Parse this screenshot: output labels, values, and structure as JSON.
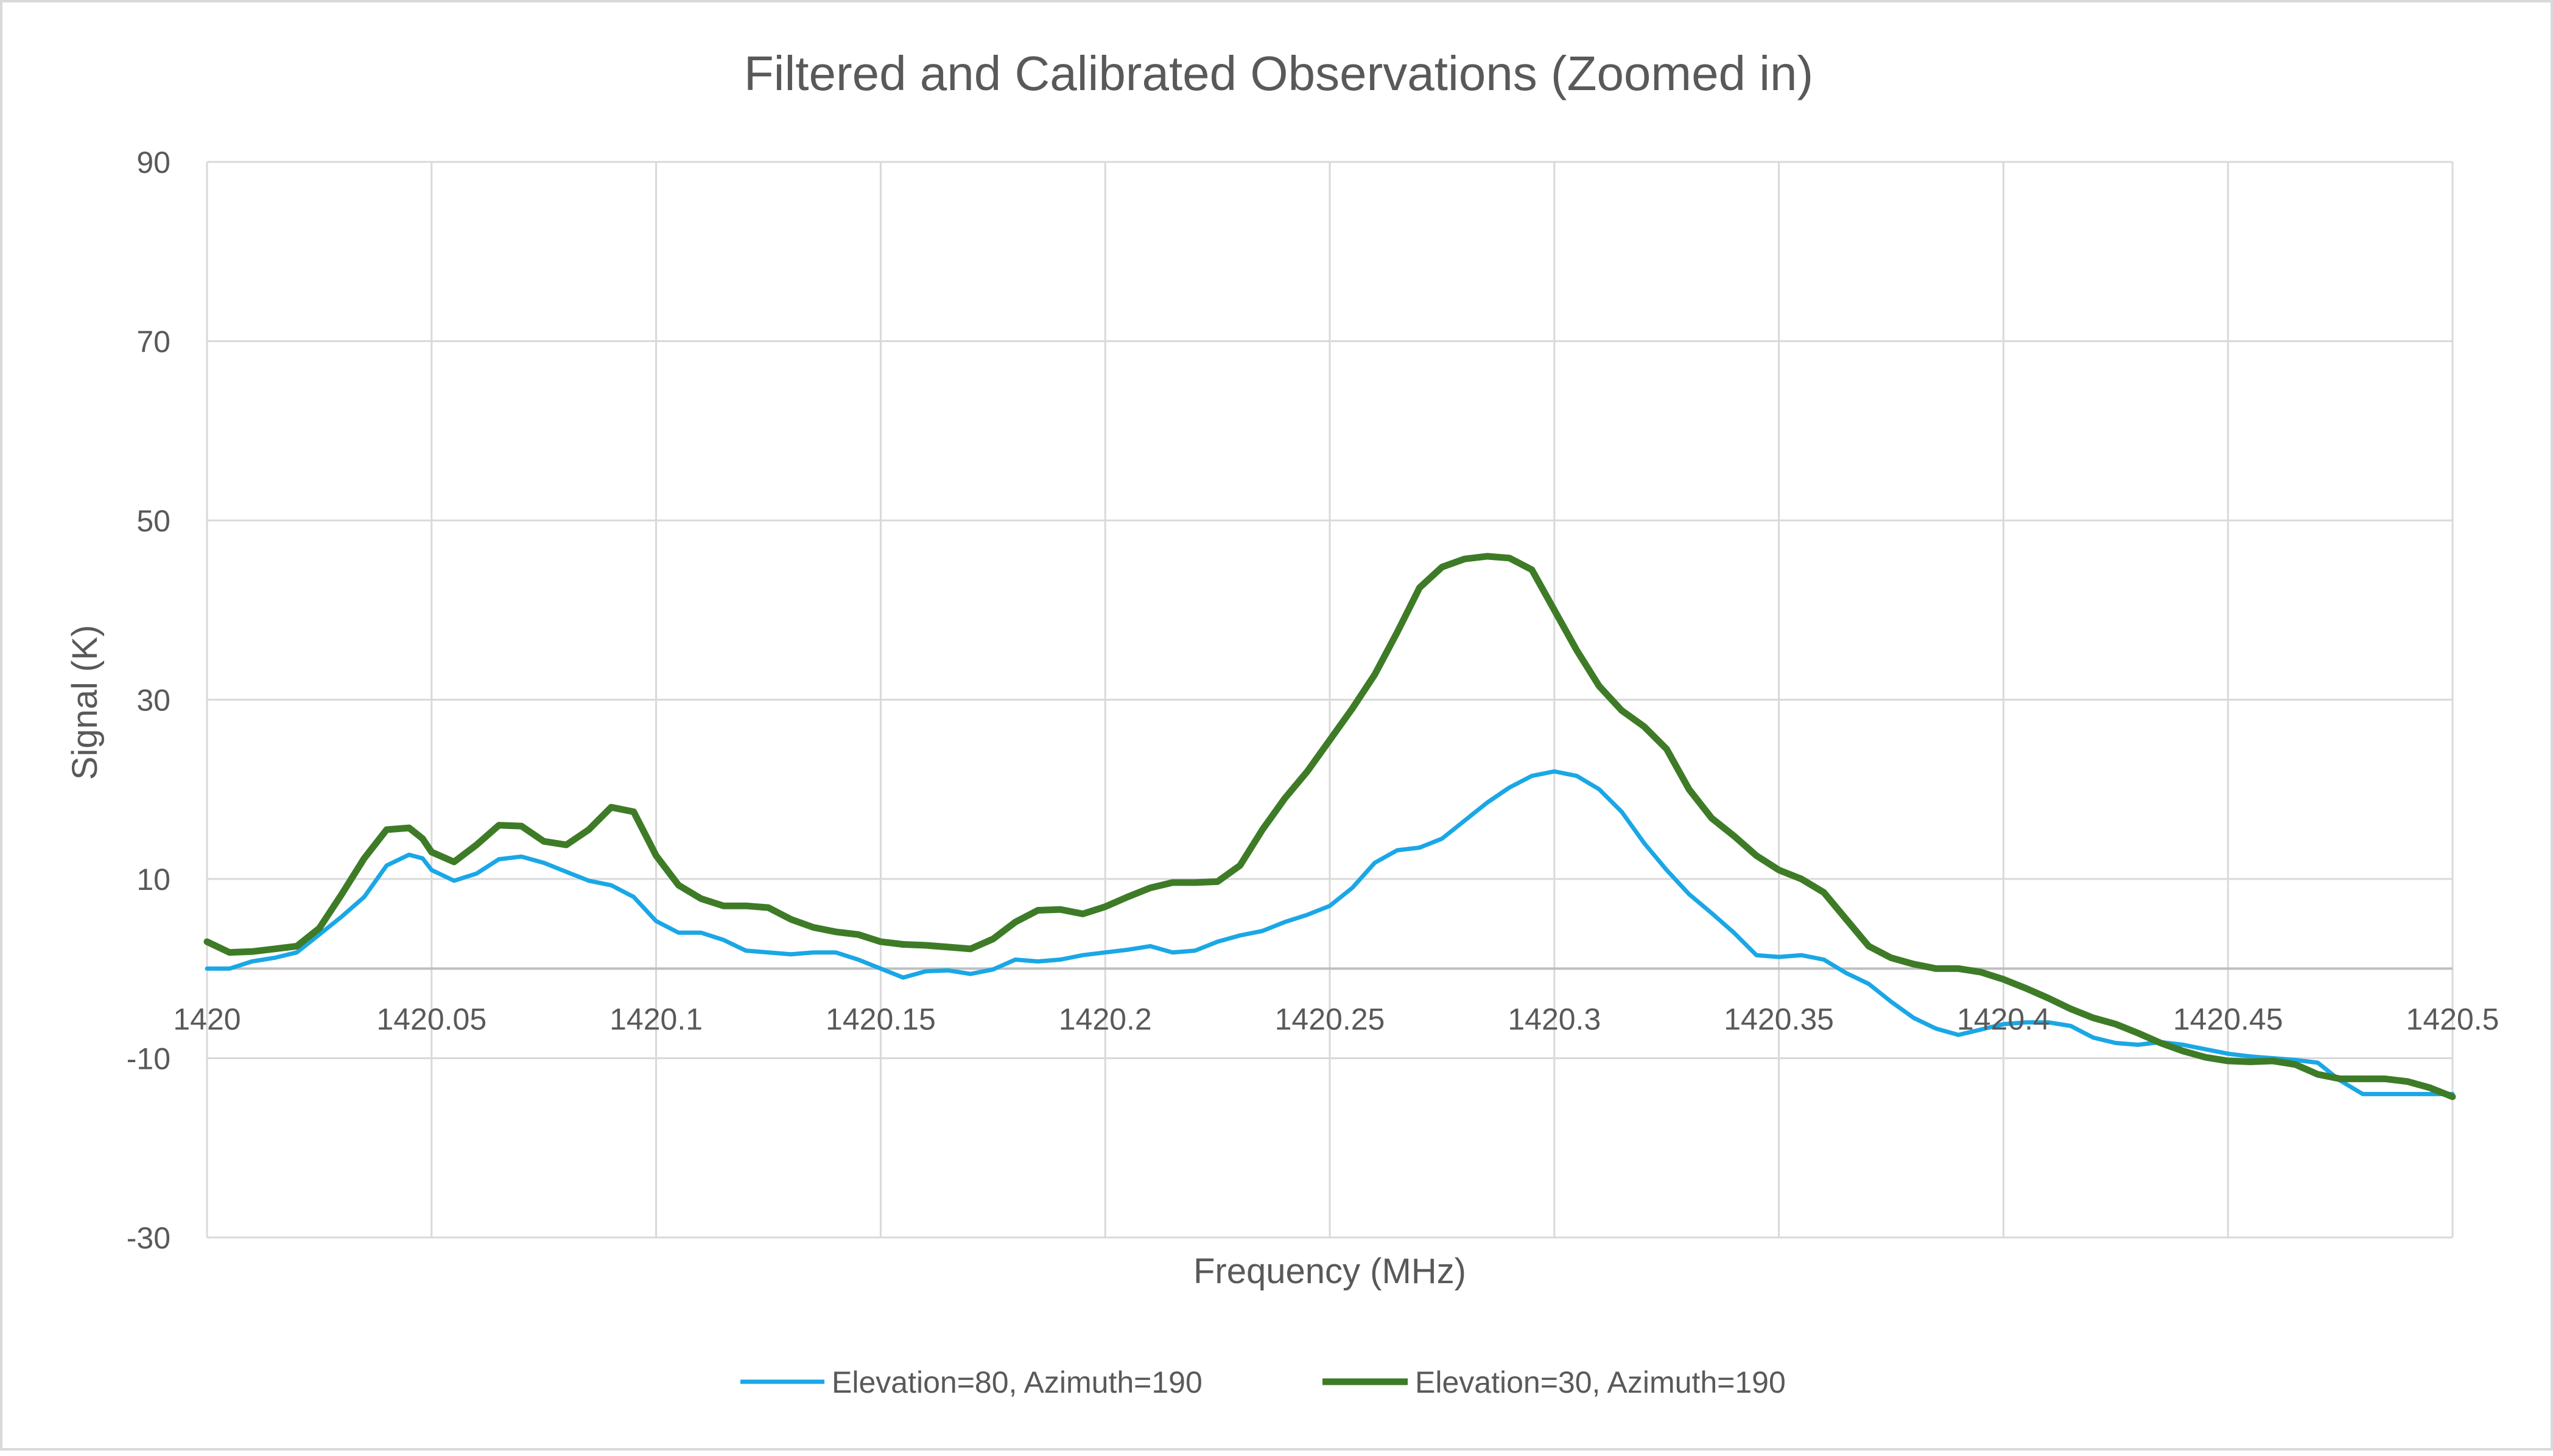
{
  "chart_data": {
    "type": "line",
    "title": "Filtered and Calibrated Observations (Zoomed in)",
    "xlabel": "Frequency (MHz)",
    "ylabel": "Signal (K)",
    "xlim": [
      1420,
      1420.5
    ],
    "ylim": [
      -30,
      90
    ],
    "x_ticks": [
      1420,
      1420.05,
      1420.1,
      1420.15,
      1420.2,
      1420.25,
      1420.3,
      1420.35,
      1420.4,
      1420.45,
      1420.5
    ],
    "x_tick_labels": [
      "1420",
      "1420.05",
      "1420.1",
      "1420.15",
      "1420.2",
      "1420.25",
      "1420.3",
      "1420.35",
      "1420.4",
      "1420.45",
      "1420.5"
    ],
    "y_ticks": [
      -30,
      -10,
      10,
      30,
      50,
      70,
      90
    ],
    "y_tick_labels": [
      "-30",
      "-10",
      "10",
      "30",
      "50",
      "70",
      "90"
    ],
    "grid": true,
    "legend_position": "bottom",
    "series": [
      {
        "name": "Elevation=80, Azimuth=190",
        "color": "#1aa7e6",
        "x": [
          1420,
          1420.005,
          1420.01,
          1420.015,
          1420.02,
          1420.025,
          1420.03,
          1420.035,
          1420.04,
          1420.045,
          1420.048,
          1420.05,
          1420.055,
          1420.06,
          1420.065,
          1420.07,
          1420.075,
          1420.08,
          1420.085,
          1420.09,
          1420.095,
          1420.1,
          1420.105,
          1420.11,
          1420.115,
          1420.12,
          1420.125,
          1420.13,
          1420.135,
          1420.14,
          1420.145,
          1420.15,
          1420.155,
          1420.16,
          1420.165,
          1420.17,
          1420.175,
          1420.18,
          1420.185,
          1420.19,
          1420.195,
          1420.2,
          1420.205,
          1420.21,
          1420.215,
          1420.22,
          1420.225,
          1420.23,
          1420.235,
          1420.24,
          1420.245,
          1420.25,
          1420.255,
          1420.26,
          1420.265,
          1420.27,
          1420.275,
          1420.28,
          1420.285,
          1420.29,
          1420.295,
          1420.3,
          1420.305,
          1420.31,
          1420.315,
          1420.32,
          1420.325,
          1420.33,
          1420.335,
          1420.34,
          1420.345,
          1420.35,
          1420.355,
          1420.36,
          1420.365,
          1420.37,
          1420.375,
          1420.38,
          1420.385,
          1420.39,
          1420.395,
          1420.4,
          1420.405,
          1420.41,
          1420.415,
          1420.42,
          1420.425,
          1420.43,
          1420.435,
          1420.44,
          1420.445,
          1420.45,
          1420.455,
          1420.46,
          1420.465,
          1420.47,
          1420.475,
          1420.48,
          1420.485,
          1420.49,
          1420.495,
          1420.5
        ],
        "y": [
          0,
          0,
          0.8,
          1.2,
          1.8,
          3.8,
          5.8,
          8,
          11.5,
          12.7,
          12.3,
          11,
          9.8,
          10.6,
          12.2,
          12.5,
          11.8,
          10.8,
          9.8,
          9.3,
          8,
          5.3,
          4,
          4,
          3.2,
          2,
          1.8,
          1.6,
          1.8,
          1.8,
          1,
          0,
          -1,
          -0.3,
          -0.2,
          -0.6,
          -0.1,
          1,
          0.8,
          1,
          1.5,
          1.8,
          2.1,
          2.5,
          1.8,
          2,
          3,
          3.7,
          4.2,
          5.2,
          6,
          7,
          9,
          11.8,
          13.2,
          13.5,
          14.5,
          16.5,
          18.5,
          20.2,
          21.5,
          22,
          21.5,
          20,
          17.5,
          14,
          11,
          8.3,
          6.2,
          4,
          1.5,
          1.3,
          1.5,
          1,
          -0.5,
          -1.7,
          -3.7,
          -5.5,
          -6.7,
          -7.4,
          -6.8,
          -6.2,
          -6,
          -6,
          -6.4,
          -7.7,
          -8.3,
          -8.5,
          -8.2,
          -8.5,
          -9,
          -9.5,
          -9.8,
          -10,
          -10.2,
          -10.5,
          -12.5,
          -14,
          -14,
          -14,
          -14,
          -14
        ],
        "y_note": "values beyond the rounding precision are read off the curve"
      },
      {
        "name": "Elevation=30, Azimuth=190",
        "color": "#3e7b27",
        "x": [
          1420,
          1420.005,
          1420.01,
          1420.015,
          1420.02,
          1420.025,
          1420.03,
          1420.035,
          1420.04,
          1420.045,
          1420.048,
          1420.05,
          1420.055,
          1420.06,
          1420.065,
          1420.07,
          1420.075,
          1420.08,
          1420.085,
          1420.09,
          1420.095,
          1420.1,
          1420.105,
          1420.11,
          1420.115,
          1420.12,
          1420.125,
          1420.13,
          1420.135,
          1420.14,
          1420.145,
          1420.15,
          1420.155,
          1420.16,
          1420.165,
          1420.17,
          1420.175,
          1420.18,
          1420.185,
          1420.19,
          1420.195,
          1420.2,
          1420.205,
          1420.21,
          1420.215,
          1420.22,
          1420.225,
          1420.23,
          1420.235,
          1420.24,
          1420.245,
          1420.25,
          1420.255,
          1420.26,
          1420.265,
          1420.27,
          1420.275,
          1420.28,
          1420.285,
          1420.29,
          1420.295,
          1420.3,
          1420.305,
          1420.31,
          1420.315,
          1420.32,
          1420.325,
          1420.33,
          1420.335,
          1420.34,
          1420.345,
          1420.35,
          1420.355,
          1420.36,
          1420.365,
          1420.37,
          1420.375,
          1420.38,
          1420.385,
          1420.39,
          1420.395,
          1420.4,
          1420.405,
          1420.41,
          1420.415,
          1420.42,
          1420.425,
          1420.43,
          1420.435,
          1420.44,
          1420.445,
          1420.45,
          1420.455,
          1420.46,
          1420.465,
          1420.47,
          1420.475,
          1420.48,
          1420.485,
          1420.49,
          1420.495,
          1420.5
        ],
        "y": [
          3,
          1.8,
          1.9,
          2.2,
          2.5,
          4.5,
          8.3,
          12.3,
          15.5,
          15.7,
          14.5,
          13,
          11.9,
          13.8,
          16,
          15.9,
          14.2,
          13.8,
          15.5,
          18,
          17.5,
          12.6,
          9.3,
          7.8,
          7,
          7,
          6.8,
          5.5,
          4.6,
          4.1,
          3.8,
          3,
          2.7,
          2.6,
          2.4,
          2.2,
          3.3,
          5.2,
          6.5,
          6.6,
          6.1,
          6.9,
          8,
          9,
          9.6,
          9.6,
          9.7,
          11.5,
          15.5,
          19,
          22,
          25.5,
          29,
          32.8,
          37.5,
          42.5,
          44.8,
          45.7,
          46,
          45.8,
          44.5,
          40,
          35.5,
          31.5,
          28.8,
          27,
          24.5,
          20,
          16.8,
          14.8,
          12.6,
          11,
          10,
          8.5,
          5.5,
          2.5,
          1.2,
          0.5,
          0,
          0,
          -0.4,
          -1.2,
          -2.2,
          -3.3,
          -4.5,
          -5.5,
          -6.2,
          -7.2,
          -8.3,
          -9.2,
          -9.9,
          -10.3,
          -10.4,
          -10.3,
          -10.7,
          -11.8,
          -12.3,
          -12.3,
          -12.3,
          -12.6,
          -13.3,
          -14.3
        ]
      }
    ]
  }
}
